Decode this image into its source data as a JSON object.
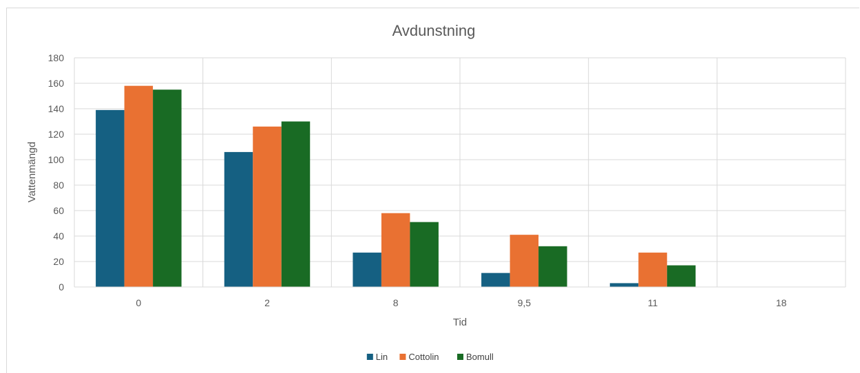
{
  "chart_data": {
    "type": "bar",
    "title": "Avdunstning",
    "xlabel": "Tid",
    "ylabel": "Vattenmängd",
    "categories": [
      "0",
      "2",
      "8",
      "9,5",
      "11",
      "18"
    ],
    "series": [
      {
        "name": "Lin",
        "color": "#156082",
        "values": [
          139,
          106,
          27,
          11,
          3,
          0
        ]
      },
      {
        "name": "Cottolin",
        "color": "#e97132",
        "values": [
          158,
          126,
          58,
          41,
          27,
          0
        ]
      },
      {
        "name": "Bomull",
        "color": "#196b24",
        "values": [
          155,
          130,
          51,
          32,
          17,
          0
        ]
      }
    ],
    "ylim": [
      0,
      180
    ],
    "yticks": [
      "0",
      "20",
      "40",
      "60",
      "80",
      "100",
      "120",
      "140",
      "160",
      "180"
    ],
    "grid": true,
    "legend_position": "bottom"
  }
}
